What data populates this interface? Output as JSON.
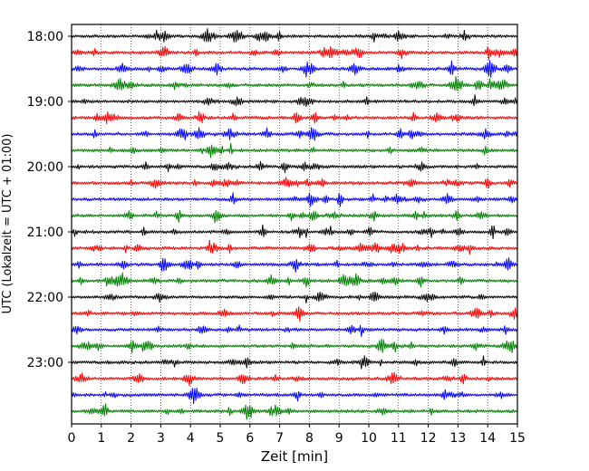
{
  "chart_data": {
    "type": "line",
    "title": "",
    "xlabel": "Zeit  [min]",
    "ylabel": "UTC (Lokalzeit = UTC + 01:00)",
    "xlim": [
      0,
      15
    ],
    "x_ticks": [
      "0",
      "1",
      "2",
      "3",
      "4",
      "5",
      "6",
      "7",
      "8",
      "9",
      "10",
      "11",
      "12",
      "13",
      "14",
      "15"
    ],
    "y_ticks": [
      "18:00",
      "19:00",
      "20:00",
      "21:00",
      "22:00",
      "23:00"
    ],
    "grid": "vertical dotted",
    "traces_per_hour": 4,
    "trace_colors": [
      "#000000",
      "#ff0000",
      "#0000ff",
      "#008000"
    ],
    "traces": [
      {
        "start": "18:00"
      },
      {
        "start": "18:15"
      },
      {
        "start": "18:30"
      },
      {
        "start": "18:45"
      },
      {
        "start": "19:00"
      },
      {
        "start": "19:15"
      },
      {
        "start": "19:30"
      },
      {
        "start": "19:45"
      },
      {
        "start": "20:00"
      },
      {
        "start": "20:15"
      },
      {
        "start": "20:30"
      },
      {
        "start": "20:45"
      },
      {
        "start": "21:00"
      },
      {
        "start": "21:15"
      },
      {
        "start": "21:30"
      },
      {
        "start": "21:45"
      },
      {
        "start": "22:00"
      },
      {
        "start": "22:15"
      },
      {
        "start": "22:30"
      },
      {
        "start": "22:45"
      },
      {
        "start": "23:00"
      },
      {
        "start": "23:15"
      },
      {
        "start": "23:30"
      },
      {
        "start": "23:45"
      }
    ]
  }
}
